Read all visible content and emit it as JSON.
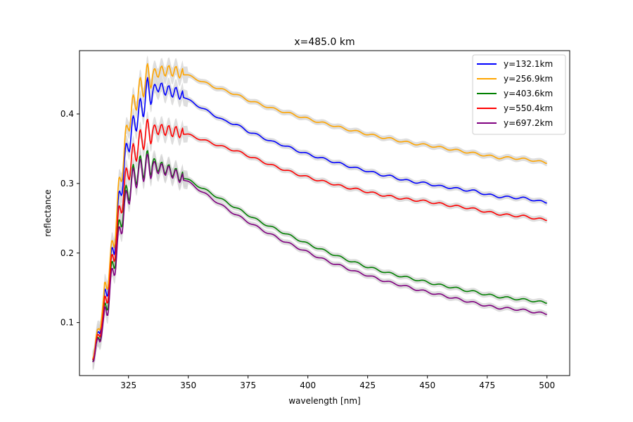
{
  "chart_data": {
    "type": "line",
    "title": "x=485.0 km",
    "xlabel": "wavelength [nm]",
    "ylabel": "reflectance",
    "xlim": [
      304.5,
      509.5
    ],
    "ylim": [
      0.0238,
      0.491
    ],
    "xticks": [
      325,
      350,
      375,
      400,
      425,
      450,
      475,
      500
    ],
    "yticks": [
      0.1,
      0.2,
      0.3,
      0.4
    ],
    "ytick_labels": [
      "0.1",
      "0.2",
      "0.3",
      "0.4"
    ],
    "grid": false,
    "legend_position": "top-right",
    "uncertainty_band_color": "#d3d3d3",
    "series": [
      {
        "name": "y=132.1km",
        "color": "#0000ff",
        "points": [
          [
            310,
            0.052
          ],
          [
            313,
            0.09
          ],
          [
            315,
            0.13
          ],
          [
            317,
            0.17
          ],
          [
            319,
            0.21
          ],
          [
            321,
            0.27
          ],
          [
            323,
            0.32
          ],
          [
            325,
            0.36
          ],
          [
            327,
            0.38
          ],
          [
            329,
            0.4
          ],
          [
            331,
            0.41
          ],
          [
            333,
            0.435
          ],
          [
            335,
            0.43
          ],
          [
            337,
            0.44
          ],
          [
            340,
            0.435
          ],
          [
            343,
            0.432
          ],
          [
            346,
            0.43
          ],
          [
            350,
            0.42
          ],
          [
            355,
            0.41
          ],
          [
            360,
            0.4
          ],
          [
            365,
            0.39
          ],
          [
            370,
            0.385
          ],
          [
            375,
            0.375
          ],
          [
            380,
            0.368
          ],
          [
            385,
            0.36
          ],
          [
            390,
            0.355
          ],
          [
            395,
            0.348
          ],
          [
            400,
            0.342
          ],
          [
            405,
            0.337
          ],
          [
            410,
            0.332
          ],
          [
            415,
            0.327
          ],
          [
            420,
            0.322
          ],
          [
            425,
            0.318
          ],
          [
            430,
            0.313
          ],
          [
            435,
            0.31
          ],
          [
            440,
            0.305
          ],
          [
            445,
            0.302
          ],
          [
            450,
            0.3
          ],
          [
            455,
            0.296
          ],
          [
            460,
            0.294
          ],
          [
            465,
            0.291
          ],
          [
            470,
            0.289
          ],
          [
            475,
            0.284
          ],
          [
            480,
            0.281
          ],
          [
            485,
            0.28
          ],
          [
            490,
            0.279
          ],
          [
            495,
            0.276
          ],
          [
            500,
            0.272
          ]
        ]
      },
      {
        "name": "y=256.9km",
        "color": "#ffa500",
        "points": [
          [
            310,
            0.054
          ],
          [
            313,
            0.095
          ],
          [
            315,
            0.14
          ],
          [
            317,
            0.18
          ],
          [
            319,
            0.22
          ],
          [
            321,
            0.29
          ],
          [
            323,
            0.34
          ],
          [
            325,
            0.39
          ],
          [
            327,
            0.41
          ],
          [
            329,
            0.43
          ],
          [
            331,
            0.44
          ],
          [
            333,
            0.455
          ],
          [
            335,
            0.455
          ],
          [
            337,
            0.46
          ],
          [
            340,
            0.462
          ],
          [
            343,
            0.462
          ],
          [
            346,
            0.46
          ],
          [
            350,
            0.455
          ],
          [
            355,
            0.448
          ],
          [
            360,
            0.44
          ],
          [
            365,
            0.434
          ],
          [
            370,
            0.428
          ],
          [
            375,
            0.42
          ],
          [
            380,
            0.414
          ],
          [
            385,
            0.408
          ],
          [
            390,
            0.403
          ],
          [
            395,
            0.398
          ],
          [
            400,
            0.393
          ],
          [
            405,
            0.388
          ],
          [
            410,
            0.384
          ],
          [
            415,
            0.379
          ],
          [
            420,
            0.375
          ],
          [
            425,
            0.371
          ],
          [
            430,
            0.367
          ],
          [
            435,
            0.364
          ],
          [
            440,
            0.36
          ],
          [
            445,
            0.357
          ],
          [
            450,
            0.355
          ],
          [
            455,
            0.352
          ],
          [
            460,
            0.349
          ],
          [
            465,
            0.346
          ],
          [
            470,
            0.343
          ],
          [
            475,
            0.34
          ],
          [
            480,
            0.337
          ],
          [
            485,
            0.337
          ],
          [
            490,
            0.335
          ],
          [
            495,
            0.333
          ],
          [
            500,
            0.329
          ]
        ]
      },
      {
        "name": "y=403.6km",
        "color": "#008000",
        "points": [
          [
            310,
            0.05
          ],
          [
            313,
            0.08
          ],
          [
            315,
            0.11
          ],
          [
            317,
            0.15
          ],
          [
            319,
            0.19
          ],
          [
            321,
            0.23
          ],
          [
            323,
            0.27
          ],
          [
            325,
            0.29
          ],
          [
            327,
            0.31
          ],
          [
            329,
            0.32
          ],
          [
            331,
            0.325
          ],
          [
            333,
            0.33
          ],
          [
            335,
            0.33
          ],
          [
            337,
            0.325
          ],
          [
            340,
            0.322
          ],
          [
            343,
            0.318
          ],
          [
            346,
            0.312
          ],
          [
            350,
            0.305
          ],
          [
            355,
            0.295
          ],
          [
            360,
            0.285
          ],
          [
            365,
            0.275
          ],
          [
            370,
            0.265
          ],
          [
            375,
            0.255
          ],
          [
            380,
            0.245
          ],
          [
            385,
            0.237
          ],
          [
            390,
            0.229
          ],
          [
            395,
            0.221
          ],
          [
            400,
            0.213
          ],
          [
            405,
            0.206
          ],
          [
            410,
            0.199
          ],
          [
            415,
            0.192
          ],
          [
            420,
            0.186
          ],
          [
            425,
            0.18
          ],
          [
            430,
            0.175
          ],
          [
            435,
            0.17
          ],
          [
            440,
            0.166
          ],
          [
            445,
            0.162
          ],
          [
            450,
            0.158
          ],
          [
            455,
            0.154
          ],
          [
            460,
            0.151
          ],
          [
            465,
            0.147
          ],
          [
            470,
            0.144
          ],
          [
            475,
            0.14
          ],
          [
            480,
            0.137
          ],
          [
            485,
            0.135
          ],
          [
            490,
            0.133
          ],
          [
            495,
            0.131
          ],
          [
            500,
            0.128
          ]
        ]
      },
      {
        "name": "y=550.4km",
        "color": "#ff0000",
        "points": [
          [
            310,
            0.052
          ],
          [
            313,
            0.085
          ],
          [
            315,
            0.12
          ],
          [
            317,
            0.16
          ],
          [
            319,
            0.2
          ],
          [
            321,
            0.25
          ],
          [
            323,
            0.29
          ],
          [
            325,
            0.32
          ],
          [
            327,
            0.34
          ],
          [
            329,
            0.355
          ],
          [
            331,
            0.365
          ],
          [
            333,
            0.375
          ],
          [
            335,
            0.375
          ],
          [
            337,
            0.378
          ],
          [
            340,
            0.377
          ],
          [
            343,
            0.375
          ],
          [
            346,
            0.374
          ],
          [
            350,
            0.37
          ],
          [
            355,
            0.364
          ],
          [
            360,
            0.358
          ],
          [
            365,
            0.352
          ],
          [
            370,
            0.347
          ],
          [
            375,
            0.34
          ],
          [
            380,
            0.333
          ],
          [
            385,
            0.326
          ],
          [
            390,
            0.32
          ],
          [
            395,
            0.314
          ],
          [
            400,
            0.309
          ],
          [
            405,
            0.304
          ],
          [
            410,
            0.3
          ],
          [
            415,
            0.295
          ],
          [
            420,
            0.292
          ],
          [
            425,
            0.288
          ],
          [
            430,
            0.284
          ],
          [
            435,
            0.281
          ],
          [
            440,
            0.278
          ],
          [
            445,
            0.276
          ],
          [
            450,
            0.274
          ],
          [
            455,
            0.271
          ],
          [
            460,
            0.268
          ],
          [
            465,
            0.266
          ],
          [
            470,
            0.263
          ],
          [
            475,
            0.259
          ],
          [
            480,
            0.256
          ],
          [
            485,
            0.254
          ],
          [
            490,
            0.253
          ],
          [
            495,
            0.25
          ],
          [
            500,
            0.247
          ]
        ]
      },
      {
        "name": "y=697.2km",
        "color": "#800080",
        "points": [
          [
            310,
            0.049
          ],
          [
            313,
            0.078
          ],
          [
            315,
            0.105
          ],
          [
            317,
            0.14
          ],
          [
            319,
            0.18
          ],
          [
            321,
            0.22
          ],
          [
            323,
            0.26
          ],
          [
            325,
            0.285
          ],
          [
            327,
            0.305
          ],
          [
            329,
            0.315
          ],
          [
            331,
            0.32
          ],
          [
            333,
            0.325
          ],
          [
            335,
            0.325
          ],
          [
            337,
            0.322
          ],
          [
            340,
            0.32
          ],
          [
            343,
            0.316
          ],
          [
            346,
            0.31
          ],
          [
            350,
            0.302
          ],
          [
            355,
            0.29
          ],
          [
            360,
            0.278
          ],
          [
            365,
            0.266
          ],
          [
            370,
            0.255
          ],
          [
            375,
            0.245
          ],
          [
            380,
            0.235
          ],
          [
            385,
            0.226
          ],
          [
            390,
            0.217
          ],
          [
            395,
            0.209
          ],
          [
            400,
            0.201
          ],
          [
            405,
            0.193
          ],
          [
            410,
            0.186
          ],
          [
            415,
            0.18
          ],
          [
            420,
            0.173
          ],
          [
            425,
            0.168
          ],
          [
            430,
            0.162
          ],
          [
            435,
            0.157
          ],
          [
            440,
            0.153
          ],
          [
            445,
            0.148
          ],
          [
            450,
            0.144
          ],
          [
            455,
            0.14
          ],
          [
            460,
            0.136
          ],
          [
            465,
            0.132
          ],
          [
            470,
            0.128
          ],
          [
            475,
            0.124
          ],
          [
            480,
            0.121
          ],
          [
            485,
            0.12
          ],
          [
            490,
            0.118
          ],
          [
            495,
            0.115
          ],
          [
            500,
            0.112
          ]
        ]
      }
    ]
  }
}
